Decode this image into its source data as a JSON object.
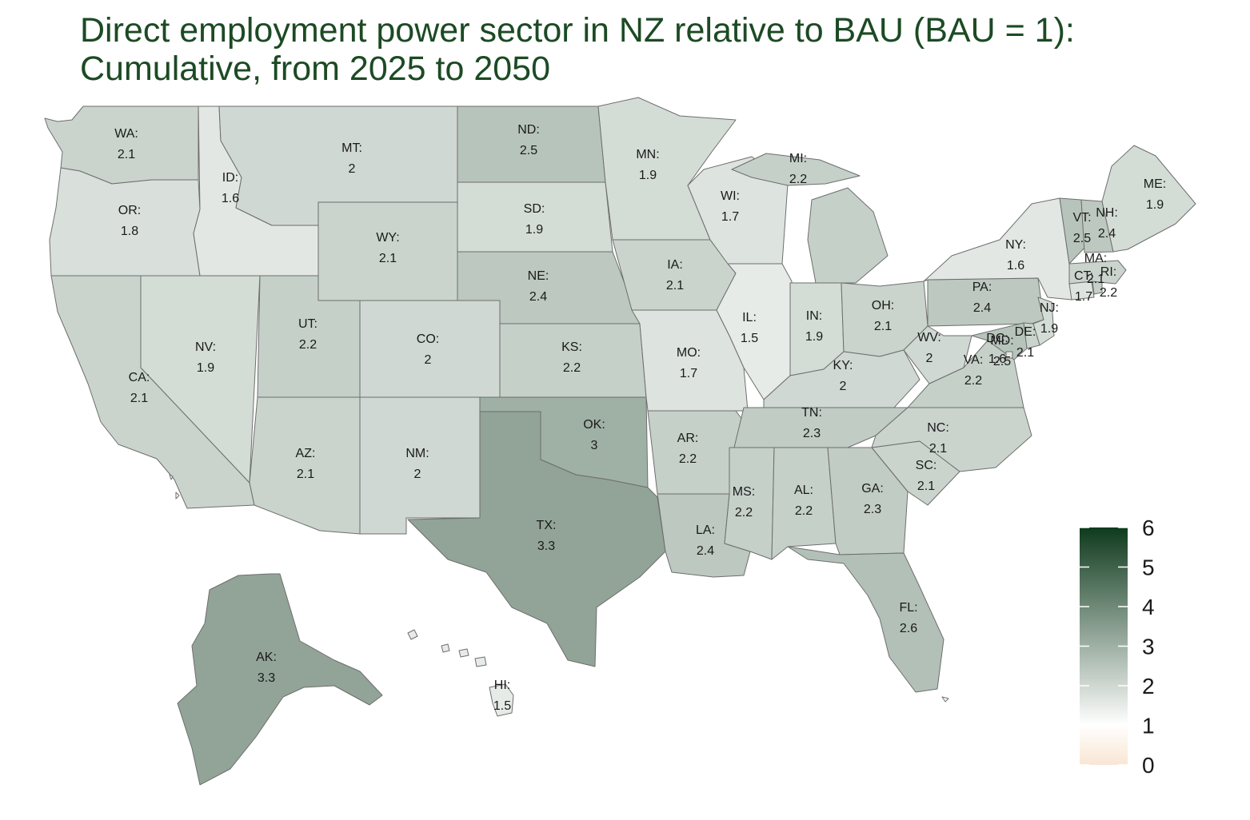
{
  "title": {
    "line1": "Direct employment power sector in NZ relative to BAU (BAU = 1):",
    "line2": "Cumulative, from 2025 to 2050"
  },
  "colors": {
    "title": "#1c4a24",
    "scale_low": "#f9e6d3",
    "scale_mid": "#ffffff",
    "scale_high": "#0f3a1d",
    "border": "#6e6e6e"
  },
  "legend": {
    "min": 0,
    "max": 6,
    "midpoint": 1,
    "ticks": [
      "0",
      "1",
      "2",
      "3",
      "4",
      "5",
      "6"
    ]
  },
  "states": [
    {
      "code": "WA",
      "label": "WA:",
      "value": 2.1
    },
    {
      "code": "OR",
      "label": "OR:",
      "value": 1.8
    },
    {
      "code": "CA",
      "label": "CA:",
      "value": 2.1
    },
    {
      "code": "ID",
      "label": "ID:",
      "value": 1.6
    },
    {
      "code": "NV",
      "label": "NV:",
      "value": 1.9
    },
    {
      "code": "MT",
      "label": "MT:",
      "value": 2
    },
    {
      "code": "WY",
      "label": "WY:",
      "value": 2.1
    },
    {
      "code": "UT",
      "label": "UT:",
      "value": 2.2
    },
    {
      "code": "AZ",
      "label": "AZ:",
      "value": 2.1
    },
    {
      "code": "CO",
      "label": "CO:",
      "value": 2
    },
    {
      "code": "NM",
      "label": "NM:",
      "value": 2
    },
    {
      "code": "ND",
      "label": "ND:",
      "value": 2.5
    },
    {
      "code": "SD",
      "label": "SD:",
      "value": 1.9
    },
    {
      "code": "NE",
      "label": "NE:",
      "value": 2.4
    },
    {
      "code": "KS",
      "label": "KS:",
      "value": 2.2
    },
    {
      "code": "OK",
      "label": "OK:",
      "value": 3
    },
    {
      "code": "TX",
      "label": "TX:",
      "value": 3.3
    },
    {
      "code": "MN",
      "label": "MN:",
      "value": 1.9
    },
    {
      "code": "IA",
      "label": "IA:",
      "value": 2.1
    },
    {
      "code": "MO",
      "label": "MO:",
      "value": 1.7
    },
    {
      "code": "AR",
      "label": "AR:",
      "value": 2.2
    },
    {
      "code": "LA",
      "label": "LA:",
      "value": 2.4
    },
    {
      "code": "WI",
      "label": "WI:",
      "value": 1.7
    },
    {
      "code": "IL",
      "label": "IL:",
      "value": 1.5
    },
    {
      "code": "MI",
      "label": "MI:",
      "value": 2.2
    },
    {
      "code": "IN",
      "label": "IN:",
      "value": 1.9
    },
    {
      "code": "OH",
      "label": "OH:",
      "value": 2.1
    },
    {
      "code": "KY",
      "label": "KY:",
      "value": 2
    },
    {
      "code": "TN",
      "label": "TN:",
      "value": 2.3
    },
    {
      "code": "MS",
      "label": "MS:",
      "value": 2.2
    },
    {
      "code": "AL",
      "label": "AL:",
      "value": 2.2
    },
    {
      "code": "GA",
      "label": "GA:",
      "value": 2.3
    },
    {
      "code": "FL",
      "label": "FL:",
      "value": 2.6
    },
    {
      "code": "SC",
      "label": "SC:",
      "value": 2.1
    },
    {
      "code": "NC",
      "label": "NC:",
      "value": 2.1
    },
    {
      "code": "VA",
      "label": "VA:",
      "value": 2.2
    },
    {
      "code": "WV",
      "label": "WV:",
      "value": 2
    },
    {
      "code": "PA",
      "label": "PA:",
      "value": 2.4
    },
    {
      "code": "NY",
      "label": "NY:",
      "value": 1.6
    },
    {
      "code": "NJ",
      "label": "NJ:",
      "value": 1.9
    },
    {
      "code": "DE",
      "label": "DE:",
      "value": 2.1
    },
    {
      "code": "MD",
      "label": "MD:",
      "value": 2.5
    },
    {
      "code": "DC",
      "label": "DC:",
      "value": 1.6
    },
    {
      "code": "CT",
      "label": "CT:",
      "value": 1.7
    },
    {
      "code": "RI",
      "label": "RI:",
      "value": 2.2
    },
    {
      "code": "MA",
      "label": "MA:",
      "value": 2.1
    },
    {
      "code": "VT",
      "label": "VT:",
      "value": 2.5
    },
    {
      "code": "NH",
      "label": "NH:",
      "value": 2.4
    },
    {
      "code": "ME",
      "label": "ME:",
      "value": 1.9
    },
    {
      "code": "AK",
      "label": "AK:",
      "value": 3.3
    },
    {
      "code": "HI",
      "label": "HI:",
      "value": 1.5
    }
  ]
}
